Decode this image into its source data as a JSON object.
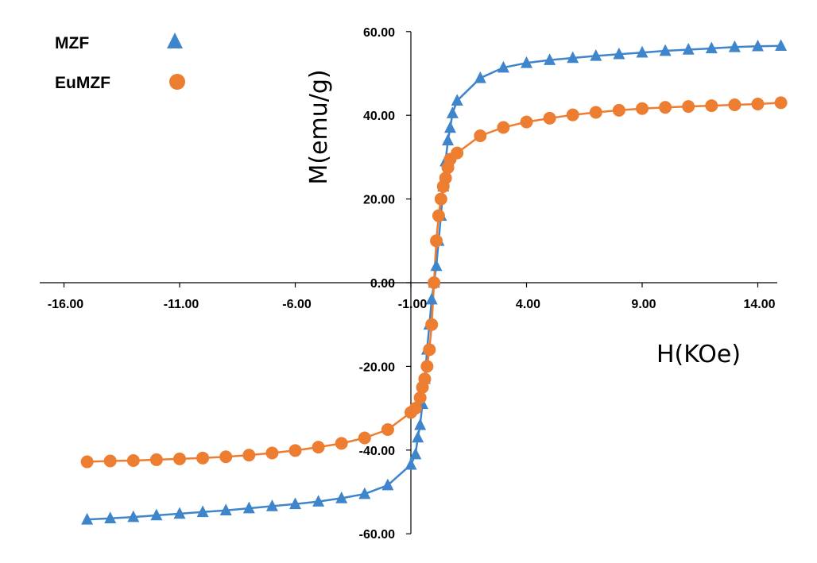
{
  "chart_data": {
    "type": "scatter",
    "title": "",
    "xlabel": "H(KOe)",
    "ylabel": "M(emu/g)",
    "xlim": [
      -16,
      16
    ],
    "ylim": [
      -60,
      60
    ],
    "xticks": [
      -16,
      -11,
      -6,
      -1,
      4,
      9,
      14
    ],
    "yticks": [
      -60,
      -40,
      -20,
      0,
      20,
      40,
      60
    ],
    "xtick_labels": [
      "-16.00",
      "-11.00",
      "-6.00",
      "-1.00",
      "4.00",
      "9.00",
      "14.00"
    ],
    "ytick_labels": [
      "-60.00",
      "-40.00",
      "-20.00",
      "0.00",
      "20.00",
      "40.00",
      "60.00"
    ],
    "grid": false,
    "legend_position": "top-left",
    "series": [
      {
        "name": "MZF",
        "marker": "triangle",
        "color": "#3f85cc",
        "x": [
          -15,
          -14,
          -13,
          -12,
          -11,
          -10,
          -9,
          -8,
          -7,
          -6,
          -5,
          -4,
          -3,
          -2,
          -1,
          -0.8,
          -0.7,
          -0.6,
          -0.5,
          -0.4,
          -0.3,
          -0.2,
          -0.1,
          0,
          0.1,
          0.2,
          0.3,
          0.4,
          0.5,
          0.6,
          0.7,
          0.8,
          1,
          2,
          3,
          4,
          5,
          6,
          7,
          8,
          9,
          10,
          11,
          12,
          13,
          14,
          15
        ],
        "y": [
          -56.6,
          -56.3,
          -56.0,
          -55.6,
          -55.2,
          -54.8,
          -54.4,
          -53.9,
          -53.4,
          -52.9,
          -52.3,
          -51.5,
          -50.5,
          -48.4,
          -43.5,
          -41.0,
          -37.0,
          -34.0,
          -29.0,
          -23.0,
          -16.0,
          -10.0,
          -4.0,
          0.0,
          4.0,
          10.0,
          16.0,
          23.0,
          29.0,
          34.0,
          37.0,
          40.5,
          43.5,
          48.9,
          51.4,
          52.5,
          53.2,
          53.7,
          54.2,
          54.6,
          55.0,
          55.4,
          55.7,
          56.0,
          56.3,
          56.5,
          56.6
        ]
      },
      {
        "name": "EuMZF",
        "marker": "circle",
        "color": "#ed7d31",
        "x": [
          -15,
          -14,
          -13,
          -12,
          -11,
          -10,
          -9,
          -8,
          -7,
          -6,
          -5,
          -4,
          -3,
          -2,
          -1,
          -0.8,
          -0.6,
          -0.5,
          -0.4,
          -0.3,
          -0.2,
          -0.1,
          0,
          0.1,
          0.2,
          0.3,
          0.4,
          0.5,
          0.6,
          0.7,
          1,
          2,
          3,
          4,
          5,
          6,
          7,
          8,
          9,
          10,
          11,
          12,
          13,
          14,
          15
        ],
        "y": [
          -42.8,
          -42.6,
          -42.5,
          -42.3,
          -42.1,
          -41.9,
          -41.6,
          -41.2,
          -40.7,
          -40.1,
          -39.3,
          -38.4,
          -37.1,
          -35.1,
          -31.0,
          -30.0,
          -27.5,
          -25.0,
          -23.0,
          -20.0,
          -16.0,
          -10.0,
          0.0,
          10.0,
          16.0,
          20.0,
          23.0,
          25.0,
          27.5,
          29.5,
          31.0,
          35.1,
          37.1,
          38.4,
          39.3,
          40.1,
          40.7,
          41.2,
          41.6,
          41.9,
          42.1,
          42.3,
          42.5,
          42.7,
          43.0
        ]
      }
    ]
  }
}
